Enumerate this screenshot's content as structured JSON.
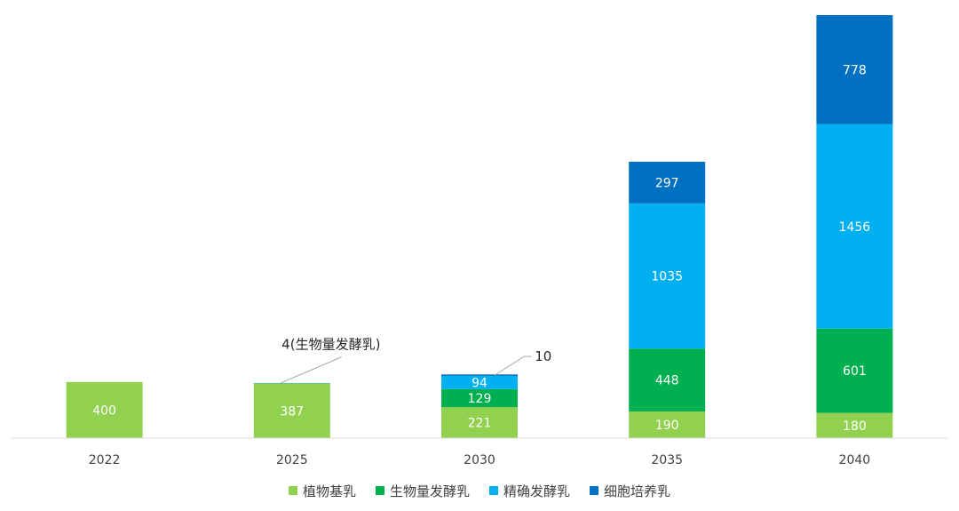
{
  "chart_data": {
    "type": "bar",
    "stacked": true,
    "categories": [
      "2022",
      "2025",
      "2030",
      "2035",
      "2040"
    ],
    "series": [
      {
        "name": "植物基乳",
        "color": "#92d050",
        "values": [
          400,
          387,
          221,
          190,
          180
        ]
      },
      {
        "name": "生物量发酵乳",
        "color": "#00b050",
        "values": [
          0,
          4,
          129,
          448,
          601
        ]
      },
      {
        "name": "精确发酵乳",
        "color": "#00b0f0",
        "values": [
          0,
          0,
          94,
          1035,
          1456
        ]
      },
      {
        "name": "细胞培养乳",
        "color": "#0070c0",
        "values": [
          0,
          0,
          10,
          297,
          778
        ]
      }
    ],
    "data_labels": [
      [
        "400",
        "387",
        "221",
        "190",
        "180"
      ],
      [
        "",
        "",
        "129",
        "448",
        "601"
      ],
      [
        "",
        "",
        "94",
        "1035",
        "1456"
      ],
      [
        "",
        "",
        "",
        "297",
        "778"
      ]
    ],
    "annotations": [
      {
        "text": "4(生物量发酵乳)",
        "category": "2025",
        "series": "生物量发酵乳"
      },
      {
        "text": "10",
        "category": "2030",
        "series": "细胞培养乳"
      }
    ],
    "ylim": [
      0,
      3015
    ],
    "grid": false,
    "legend_position": "bottom",
    "title": "",
    "xlabel": "",
    "ylabel": ""
  }
}
